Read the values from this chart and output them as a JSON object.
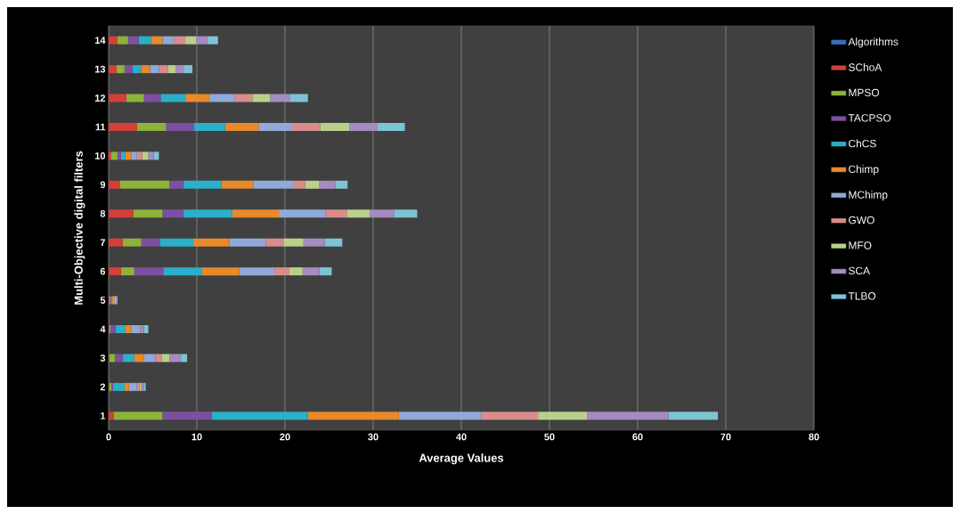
{
  "chart_data": {
    "type": "bar",
    "orientation": "horizontal",
    "stacked": true,
    "xlabel": "Average Values",
    "ylabel": "Multi-Objective digital filters",
    "categories": [
      "14",
      "13",
      "12",
      "11",
      "10",
      "9",
      "8",
      "7",
      "6",
      "5",
      "4",
      "3",
      "2",
      "1"
    ],
    "series": [
      {
        "name": "Algorithms",
        "color": "#3a6db5",
        "values": [
          0,
          0,
          0,
          0,
          0,
          0,
          0,
          0,
          0,
          0,
          0,
          0,
          0,
          0
        ]
      },
      {
        "name": "SChoA",
        "color": "#d43f3a",
        "values": [
          1.0,
          0.9,
          2.0,
          3.2,
          0.3,
          1.3,
          2.8,
          1.6,
          1.4,
          0.1,
          0.1,
          0.1,
          0.1,
          0.6
        ]
      },
      {
        "name": "MPSO",
        "color": "#8db33a",
        "values": [
          1.2,
          0.9,
          2.0,
          3.3,
          0.7,
          5.6,
          3.3,
          2.1,
          1.5,
          0.1,
          0.1,
          0.6,
          0.2,
          5.5
        ]
      },
      {
        "name": "TACPSO",
        "color": "#7d4fa0",
        "values": [
          1.2,
          0.9,
          1.9,
          3.2,
          0.4,
          1.6,
          2.4,
          2.1,
          3.3,
          0.1,
          0.6,
          0.9,
          0.2,
          5.6
        ]
      },
      {
        "name": "ChCS",
        "color": "#2ab0c8",
        "values": [
          1.4,
          1.0,
          2.8,
          3.5,
          0.5,
          4.3,
          5.5,
          3.8,
          4.4,
          0.1,
          1.1,
          1.3,
          1.3,
          10.9
        ]
      },
      {
        "name": "Chimp",
        "color": "#e8892a",
        "values": [
          1.3,
          1.0,
          2.7,
          3.8,
          0.7,
          3.6,
          5.3,
          4.1,
          4.2,
          0.1,
          0.7,
          1.1,
          0.5,
          10.3
        ]
      },
      {
        "name": "MChimp",
        "color": "#8faad8",
        "values": [
          1.3,
          1.0,
          2.9,
          3.8,
          0.6,
          4.5,
          5.3,
          4.1,
          4.0,
          0.1,
          1.0,
          1.3,
          0.9,
          9.3
        ]
      },
      {
        "name": "GWO",
        "color": "#d98c8c",
        "values": [
          1.3,
          1.0,
          2.0,
          3.2,
          0.6,
          1.4,
          2.4,
          2.1,
          1.7,
          0.1,
          0.1,
          0.7,
          0.3,
          6.5
        ]
      },
      {
        "name": "MFO",
        "color": "#b9d08a",
        "values": [
          1.2,
          0.9,
          2.0,
          3.3,
          0.7,
          1.6,
          2.6,
          2.2,
          1.5,
          0.1,
          0.1,
          0.9,
          0.2,
          5.6
        ]
      },
      {
        "name": "SCA",
        "color": "#a48cc0",
        "values": [
          1.3,
          0.9,
          2.3,
          3.2,
          0.6,
          1.8,
          2.8,
          2.4,
          1.9,
          0.1,
          0.2,
          1.3,
          0.3,
          9.2
        ]
      },
      {
        "name": "TLBO",
        "color": "#7cc4d4",
        "values": [
          1.2,
          1.0,
          2.0,
          3.1,
          0.6,
          1.4,
          2.6,
          2.0,
          1.4,
          0.1,
          0.5,
          0.7,
          0.2,
          5.6
        ]
      }
    ],
    "xlim": [
      0,
      80
    ],
    "xticks": [
      0,
      10,
      20,
      30,
      40,
      50,
      60,
      70,
      80
    ],
    "grid": "x",
    "legend": "right"
  }
}
